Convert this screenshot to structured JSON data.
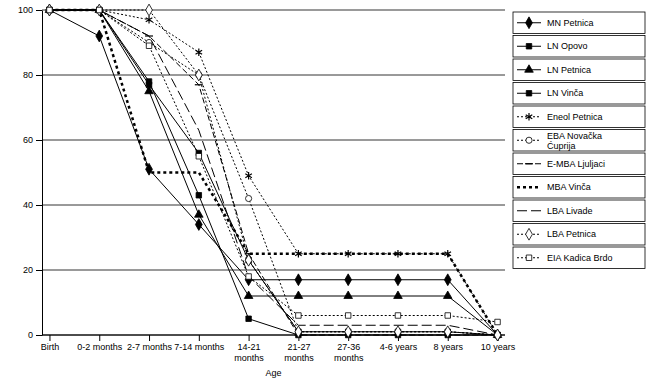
{
  "chart_data": {
    "type": "line",
    "x_label": "Age",
    "categories": [
      "Birth",
      "0-2 months",
      "2-7 months",
      "7-14 months",
      "14-21 months",
      "21-27 months",
      "27-36 months",
      "4-6 years",
      "8 years",
      "10 years"
    ],
    "ylim": [
      0,
      100
    ],
    "yticks": [
      0,
      20,
      40,
      60,
      80,
      100
    ],
    "grid": true,
    "legend": "right",
    "series": [
      {
        "name": "MN Petnica",
        "color": "#000000",
        "marker": "diamond",
        "line_style": "solid",
        "values": [
          100,
          92,
          51,
          34,
          17,
          17,
          17,
          17,
          17,
          0
        ]
      },
      {
        "name": "LN Opovo",
        "color": "#000000",
        "marker": "square",
        "line_style": "solid",
        "values": [
          100,
          100,
          77,
          56,
          23,
          1,
          1,
          1,
          1,
          0
        ]
      },
      {
        "name": "LN Petnica",
        "color": "#000000",
        "marker": "triangle",
        "line_style": "solid",
        "values": [
          100,
          100,
          75,
          37,
          12,
          12,
          12,
          12,
          12,
          0
        ]
      },
      {
        "name": "LN Vinča",
        "color": "#000000",
        "marker": "square",
        "line_style": "solid",
        "values": [
          100,
          100,
          78,
          43,
          5,
          0,
          0,
          0,
          0,
          0
        ]
      },
      {
        "name": "Eneol Petnica",
        "color": "#000000",
        "marker": "asterisk",
        "line_style": "dotted",
        "values": [
          100,
          100,
          97,
          87,
          49,
          25,
          25,
          25,
          25,
          0
        ]
      },
      {
        "name": "EBA Novačka Ćuprija",
        "color": "#000000",
        "marker": "circle-open",
        "line_style": "dotted",
        "values": [
          100,
          100,
          90,
          80,
          42,
          1,
          1,
          1,
          1,
          0
        ]
      },
      {
        "name": "E-MBA Ljuljaci",
        "color": "#000000",
        "marker": "dash",
        "line_style": "dashed",
        "values": [
          100,
          100,
          92,
          77,
          25,
          0,
          0,
          0,
          0,
          0
        ]
      },
      {
        "name": "MBA Vinča",
        "color": "#000000",
        "marker": "none",
        "line_style": "bold-dotted",
        "values": [
          100,
          100,
          50,
          50,
          25,
          25,
          25,
          25,
          25,
          0
        ]
      },
      {
        "name": "LBA Livade",
        "color": "#000000",
        "marker": "none",
        "line_style": "long-dash",
        "values": [
          100,
          100,
          92,
          63,
          18,
          3,
          3,
          3,
          3,
          0
        ]
      },
      {
        "name": "LBA Petnica",
        "color": "#000000",
        "marker": "diamond-open",
        "line_style": "dotted",
        "values": [
          100,
          100,
          100,
          80,
          23,
          1,
          1,
          1,
          1,
          0
        ]
      },
      {
        "name": "EIA Kadica Brdo",
        "color": "#000000",
        "marker": "square-open",
        "line_style": "dotted",
        "values": [
          100,
          100,
          89,
          55,
          18,
          6,
          6,
          6,
          6,
          4
        ]
      }
    ]
  }
}
